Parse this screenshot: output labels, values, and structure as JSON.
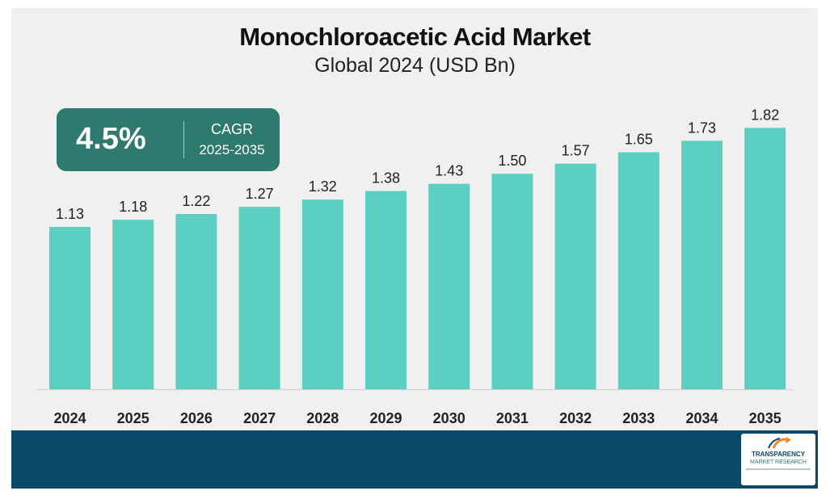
{
  "chart_data": {
    "type": "bar",
    "title": "Monochloroacetic Acid Market",
    "subtitle": "Global 2024 (USD Bn)",
    "categories": [
      "2024",
      "2025",
      "2026",
      "2027",
      "2028",
      "2029",
      "2030",
      "2031",
      "2032",
      "2033",
      "2034",
      "2035"
    ],
    "values": [
      1.13,
      1.18,
      1.22,
      1.27,
      1.32,
      1.38,
      1.43,
      1.5,
      1.57,
      1.65,
      1.73,
      1.82
    ],
    "value_labels": [
      "1.13",
      "1.18",
      "1.22",
      "1.27",
      "1.32",
      "1.38",
      "1.43",
      "1.50",
      "1.57",
      "1.65",
      "1.73",
      "1.82"
    ],
    "xlabel": "",
    "ylabel": "",
    "grid": false,
    "bar_color": "#5ccfc3"
  },
  "cagr": {
    "value": "4.5%",
    "label": "CAGR",
    "period": "2025-2035",
    "color": "#2e7a6e"
  },
  "footer": {
    "color": "#0a4a66"
  },
  "logo": {
    "line1": "TRANSPARENCY",
    "line2": "MARKET RESEARCH",
    "icon": "arrow-logo-icon"
  }
}
